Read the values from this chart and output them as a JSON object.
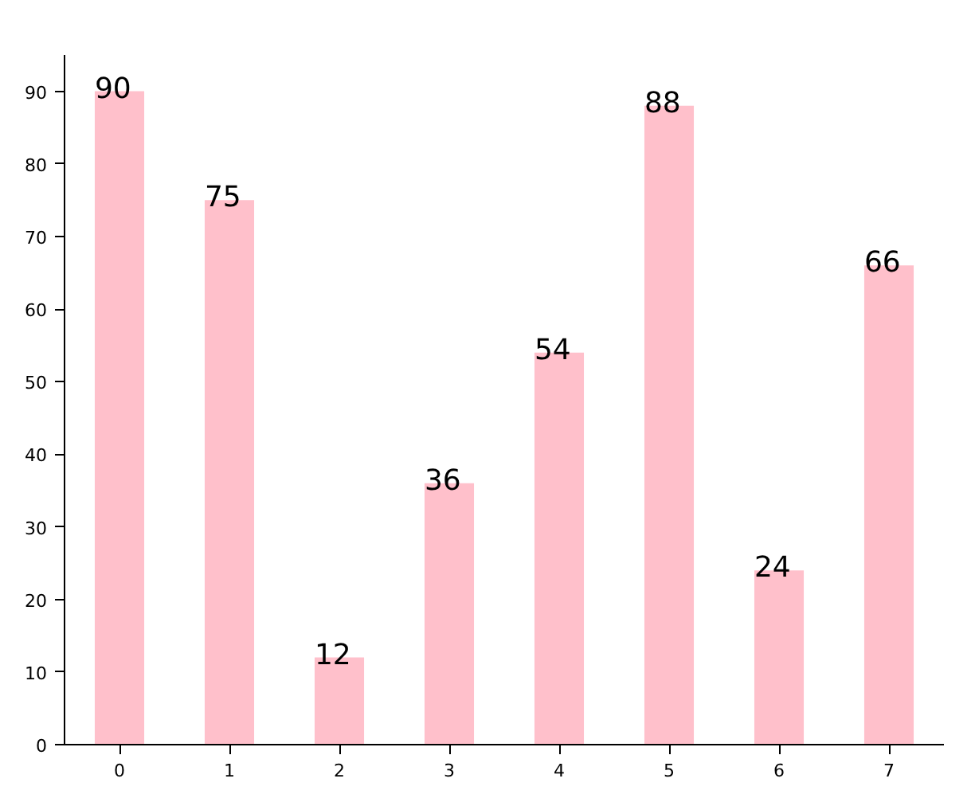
{
  "chart_data": {
    "type": "bar",
    "categories": [
      "0",
      "1",
      "2",
      "3",
      "4",
      "5",
      "6",
      "7"
    ],
    "values": [
      90,
      75,
      12,
      36,
      54,
      88,
      24,
      66
    ],
    "color": "#ffc0cb",
    "ylim": [
      0,
      95
    ],
    "yticks": [
      0,
      10,
      20,
      30,
      40,
      50,
      60,
      70,
      80,
      90
    ],
    "grid": false,
    "data_labels": true
  }
}
